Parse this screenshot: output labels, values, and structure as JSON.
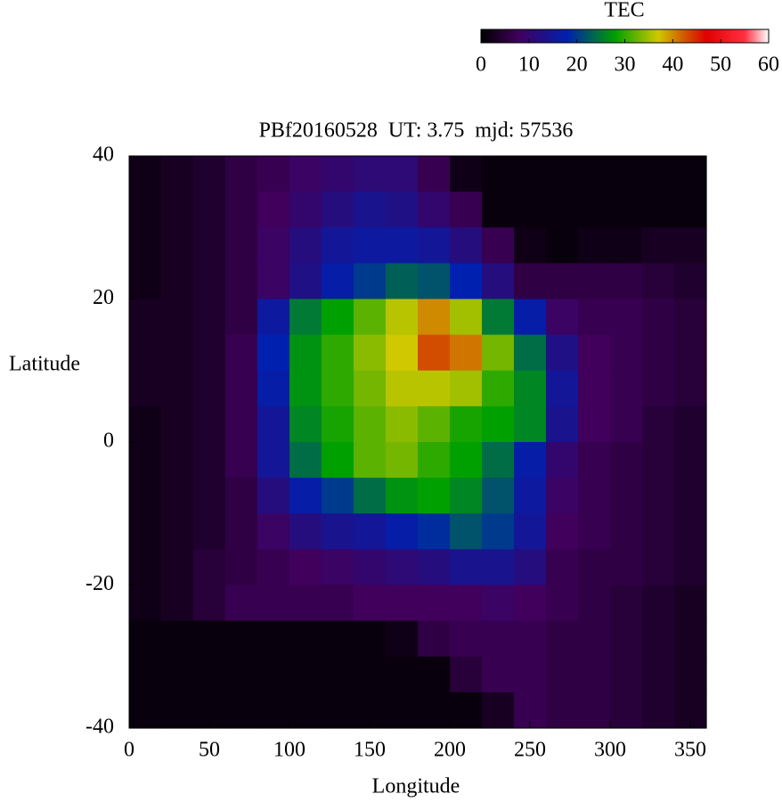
{
  "chart_data": {
    "type": "heatmap",
    "title": "PBf20160528  UT: 3.75  mjd: 57536",
    "xlabel": "Longitude",
    "ylabel": "Latitude",
    "xlim": [
      0,
      360
    ],
    "xticks": [
      0,
      50,
      100,
      150,
      200,
      250,
      300,
      350
    ],
    "ylim": [
      -40,
      40
    ],
    "yticks": [
      -40,
      -20,
      0,
      20,
      40
    ],
    "x": [
      10,
      30,
      50,
      70,
      90,
      110,
      130,
      150,
      170,
      190,
      210,
      230,
      250,
      270,
      290,
      310,
      330,
      350
    ],
    "y": [
      37.5,
      32.5,
      27.5,
      22.5,
      17.5,
      12.5,
      7.5,
      2.5,
      -2.5,
      -7.5,
      -12.5,
      -17.5,
      -22.5,
      -27.5,
      -32.5,
      -37.5
    ],
    "z": [
      [
        2,
        3,
        4,
        6,
        7,
        9,
        10,
        11,
        11,
        7,
        2,
        1,
        1,
        1,
        1,
        1,
        1,
        1
      ],
      [
        2,
        3,
        4,
        6,
        8,
        10,
        12,
        14,
        13,
        10,
        7,
        1,
        1,
        1,
        1,
        1,
        1,
        1
      ],
      [
        2,
        3,
        4,
        6,
        9,
        12,
        15,
        16,
        16,
        15,
        12,
        7,
        2,
        1,
        2,
        2,
        3,
        3
      ],
      [
        2,
        3,
        4,
        6,
        9,
        13,
        17,
        20,
        23,
        22,
        18,
        12,
        6,
        6,
        6,
        6,
        5,
        4
      ],
      [
        3,
        3,
        4,
        6,
        16,
        25,
        28,
        32,
        36,
        40,
        35,
        25,
        17,
        9,
        7,
        7,
        6,
        5
      ],
      [
        3,
        3,
        4,
        7,
        18,
        27,
        30,
        34,
        37,
        43,
        41,
        33,
        24,
        13,
        8,
        7,
        6,
        5
      ],
      [
        3,
        3,
        4,
        7,
        17,
        27,
        30,
        33,
        36,
        36,
        35,
        30,
        26,
        15,
        8,
        7,
        6,
        5
      ],
      [
        2,
        3,
        4,
        7,
        15,
        26,
        29,
        32,
        34,
        32,
        29,
        28,
        26,
        14,
        8,
        7,
        5,
        4
      ],
      [
        2,
        3,
        4,
        7,
        15,
        24,
        28,
        32,
        33,
        30,
        28,
        24,
        17,
        10,
        7,
        6,
        5,
        4
      ],
      [
        2,
        3,
        4,
        6,
        12,
        17,
        20,
        24,
        27,
        28,
        26,
        22,
        16,
        9,
        7,
        6,
        5,
        4
      ],
      [
        2,
        3,
        4,
        6,
        9,
        12,
        14,
        15,
        17,
        19,
        22,
        20,
        15,
        8,
        7,
        6,
        5,
        4
      ],
      [
        2,
        3,
        5,
        6,
        7,
        8,
        9,
        10,
        11,
        12,
        14,
        14,
        12,
        7,
        6,
        6,
        5,
        4
      ],
      [
        2,
        3,
        5,
        7,
        7,
        7,
        7,
        8,
        8,
        8,
        8,
        9,
        8,
        7,
        6,
        5,
        4,
        3
      ],
      [
        1,
        1,
        1,
        1,
        1,
        1,
        1,
        1,
        2,
        6,
        7,
        7,
        7,
        6,
        6,
        5,
        4,
        3
      ],
      [
        1,
        1,
        1,
        1,
        1,
        1,
        1,
        1,
        1,
        1,
        5,
        7,
        7,
        6,
        6,
        5,
        4,
        3
      ],
      [
        1,
        1,
        1,
        1,
        1,
        1,
        1,
        1,
        1,
        1,
        1,
        3,
        7,
        6,
        6,
        5,
        4,
        3
      ]
    ],
    "colorbar": {
      "label": "TEC",
      "clim": [
        0,
        60
      ],
      "ticks": [
        0,
        10,
        20,
        30,
        40,
        50,
        60
      ],
      "colorscale": [
        [
          0,
          "#000000"
        ],
        [
          8,
          "#40005c"
        ],
        [
          18,
          "#0020b0"
        ],
        [
          28,
          "#00a000"
        ],
        [
          37,
          "#d0c800"
        ],
        [
          42,
          "#d06000"
        ],
        [
          47,
          "#e00000"
        ],
        [
          55,
          "#ff3040"
        ],
        [
          60,
          "#ffffff"
        ]
      ]
    }
  }
}
